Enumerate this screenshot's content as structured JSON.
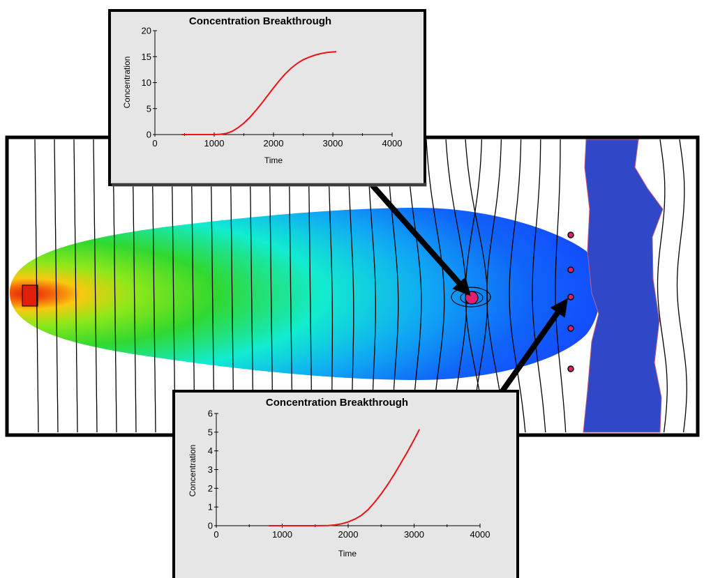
{
  "colors": {
    "plume_hot": "#e02010",
    "plume_mid": "#30d020",
    "plume_cool": "#1040ff",
    "river": "#3048c8",
    "curve": "#ee1111",
    "well": "#e0206a",
    "panel_bg": "#e6e6e6"
  },
  "map": {
    "source_marker": "rectangle",
    "observation_wells": 5,
    "pumping_well": "circle"
  },
  "chart_data": [
    {
      "type": "line",
      "title": "Concentration Breakthrough",
      "xlabel": "Time",
      "ylabel": "Concentration",
      "xlim": [
        0,
        4000
      ],
      "ylim": [
        0,
        20
      ],
      "xticks": [
        0,
        1000,
        2000,
        3000,
        4000
      ],
      "yticks": [
        0,
        5,
        10,
        15,
        20
      ],
      "grid": false,
      "series": [
        {
          "x": [
            450,
            800,
            1000,
            1100,
            1200,
            1300,
            1400,
            1500,
            1600,
            1700,
            1800,
            1900,
            2000,
            2100,
            2200,
            2300,
            2400,
            2500,
            2600,
            2700,
            2800,
            2900,
            3000,
            3060
          ],
          "y": [
            0,
            0,
            0,
            0.05,
            0.2,
            0.6,
            1.3,
            2.2,
            3.3,
            4.6,
            6.0,
            7.5,
            9.0,
            10.4,
            11.7,
            12.8,
            13.7,
            14.4,
            14.9,
            15.3,
            15.6,
            15.8,
            15.9,
            15.95
          ]
        }
      ]
    },
    {
      "type": "line",
      "title": "Concentration Breakthrough",
      "xlabel": "Time",
      "ylabel": "Concentration",
      "xlim": [
        0,
        4000
      ],
      "ylim": [
        0,
        6
      ],
      "xticks": [
        0,
        1000,
        2000,
        3000,
        4000
      ],
      "yticks": [
        0,
        1,
        2,
        3,
        4,
        5,
        6
      ],
      "grid": false,
      "series": [
        {
          "x": [
            800,
            1200,
            1500,
            1700,
            1800,
            1900,
            2000,
            2100,
            2200,
            2300,
            2400,
            2500,
            2600,
            2700,
            2800,
            2900,
            3000,
            3080
          ],
          "y": [
            0,
            0,
            0,
            0.01,
            0.04,
            0.1,
            0.2,
            0.35,
            0.55,
            0.85,
            1.25,
            1.7,
            2.2,
            2.75,
            3.35,
            3.95,
            4.6,
            5.15
          ]
        }
      ]
    }
  ]
}
